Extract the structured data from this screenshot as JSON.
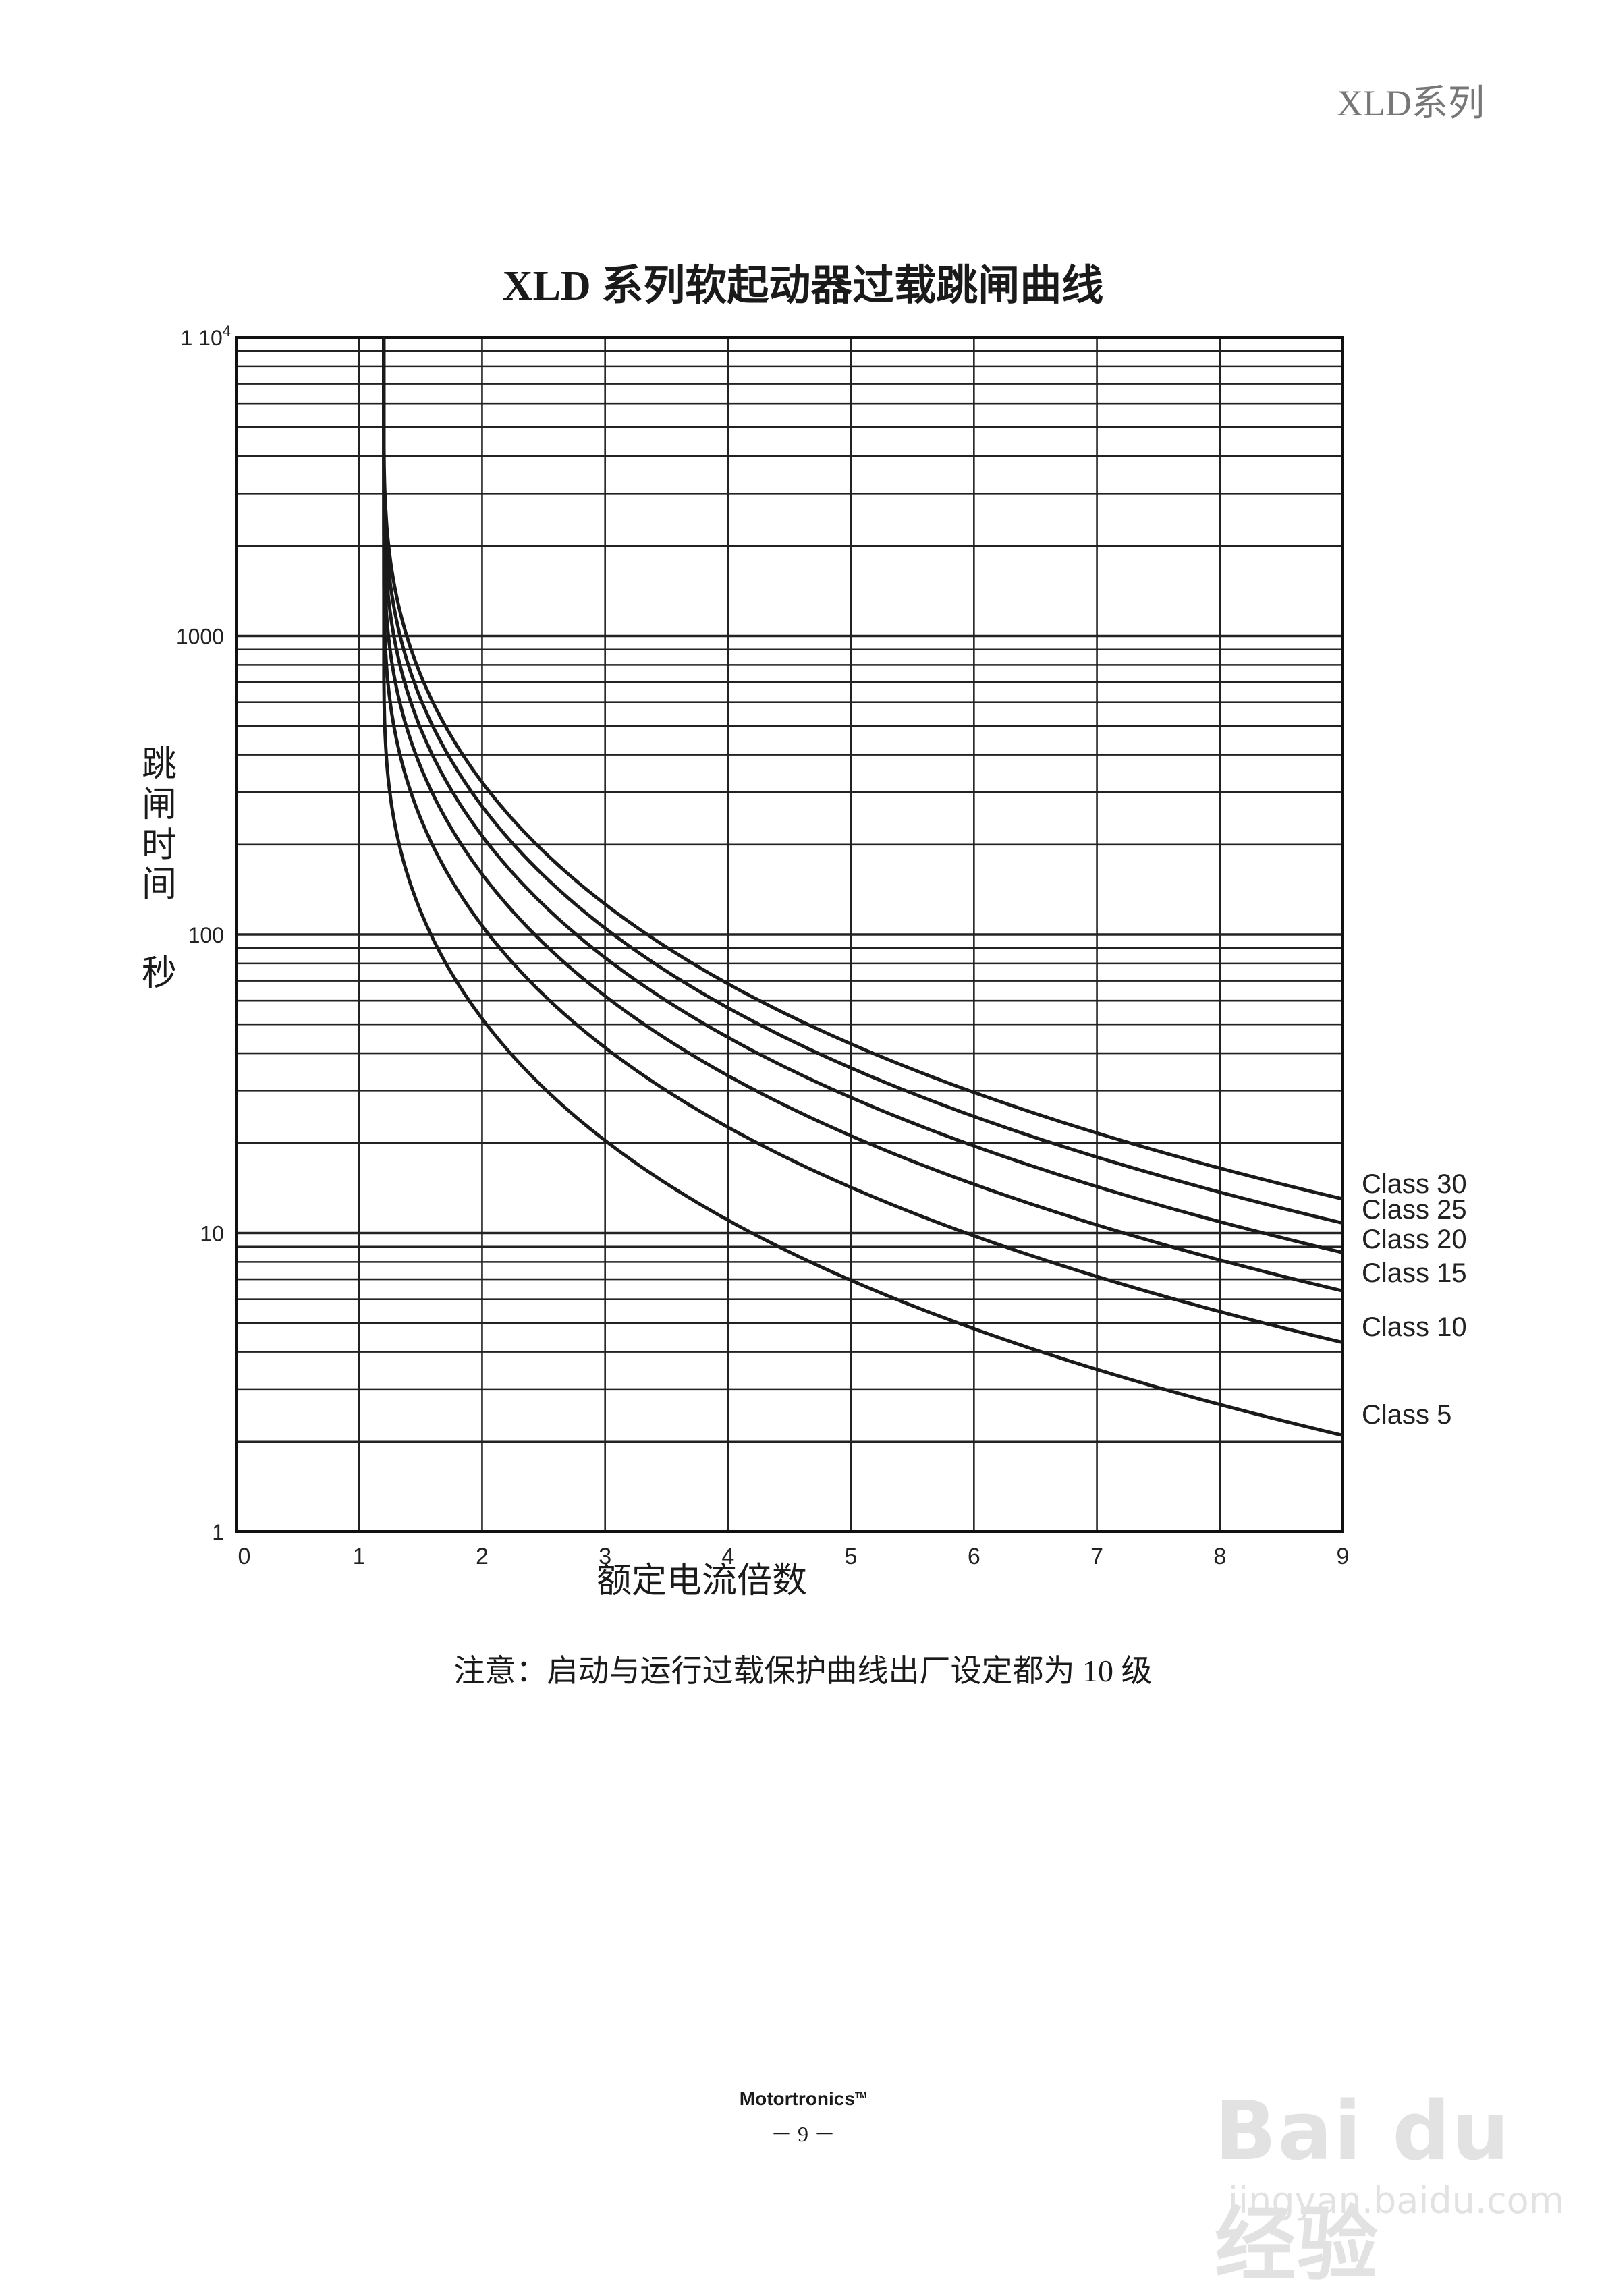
{
  "header": {
    "series": "XLD系列"
  },
  "chart_data": {
    "type": "line",
    "title": "XLD 系列软起动器过载跳闸曲线",
    "ylabel_chars": [
      "跳",
      "闸",
      "时",
      "间",
      "秒"
    ],
    "xlabel": "额定电流倍数",
    "x_ticks": [
      "0",
      "1",
      "2",
      "3",
      "4",
      "5",
      "6",
      "7",
      "8",
      "9"
    ],
    "xlim": [
      0,
      9
    ],
    "y_scale": "log",
    "ylim": [
      1,
      10000
    ],
    "y_tick_labels": [
      {
        "value": 10000,
        "label": "1 10",
        "sup": "4"
      },
      {
        "value": 1000,
        "label": "1000"
      },
      {
        "value": 100,
        "label": "100"
      },
      {
        "value": 10,
        "label": "10"
      },
      {
        "value": 1,
        "label": "1"
      }
    ],
    "grid": true,
    "series": [
      {
        "name": "Class 30",
        "class": 30,
        "end_value": 13
      },
      {
        "name": "Class 25",
        "class": 25,
        "end_value": 10.8
      },
      {
        "name": "Class 20",
        "class": 20,
        "end_value": 8.6
      },
      {
        "name": "Class 15",
        "class": 15,
        "end_value": 6.4
      },
      {
        "name": "Class 10",
        "class": 10,
        "end_value": 4.3
      },
      {
        "name": "Class 5",
        "class": 5,
        "end_value": 2.1
      }
    ]
  },
  "note": "注意：启动与运行过载保护曲线出厂设定都为 10 级",
  "footer": {
    "brand": "Motortronics",
    "tm": "TM",
    "page": "－ 9 －"
  },
  "watermark": {
    "logo": "Bai du 经验",
    "url": "jingyan.baidu.com"
  }
}
